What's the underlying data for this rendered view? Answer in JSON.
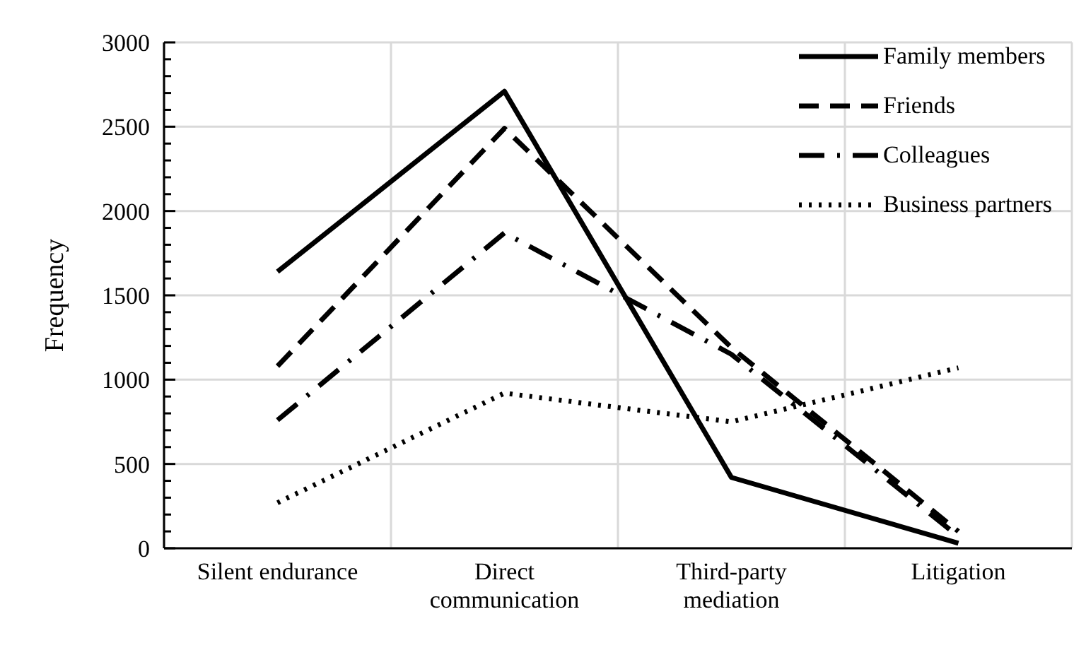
{
  "chart_data": {
    "type": "line",
    "ylabel": "Frequency",
    "categories": [
      "Silent endurance",
      "Direct communication",
      "Third-party mediation",
      "Litigation"
    ],
    "series": [
      {
        "name": "Family members",
        "color": "#000000",
        "line_style": "solid",
        "values": [
          1640,
          2710,
          420,
          30
        ]
      },
      {
        "name": "Friends",
        "color": "#000000",
        "line_style": "dashed",
        "values": [
          1080,
          2490,
          1190,
          100
        ]
      },
      {
        "name": "Colleagues",
        "color": "#000000",
        "line_style": "dashdot",
        "values": [
          760,
          1870,
          1150,
          70
        ]
      },
      {
        "name": "Business partners",
        "color": "#000000",
        "line_style": "dotted",
        "values": [
          270,
          920,
          750,
          1070
        ]
      }
    ],
    "ylim": [
      0,
      3000
    ],
    "yticks": [
      0,
      {
        "value": 100,
        "label": null
      },
      {
        "value": 200,
        "label": null
      },
      {
        "value": 300,
        "label": null
      },
      {
        "value": 400,
        "label": null
      },
      500,
      {
        "value": 600,
        "label": null
      },
      {
        "value": 700,
        "label": null
      },
      {
        "value": 800,
        "label": null
      },
      {
        "value": 900,
        "label": null
      },
      1000,
      {
        "value": 1100,
        "label": null
      },
      {
        "value": 1200,
        "label": null
      },
      {
        "value": 1300,
        "label": null
      },
      {
        "value": 1400,
        "label": null
      },
      1500,
      {
        "value": 1600,
        "label": null
      },
      {
        "value": 1700,
        "label": null
      },
      {
        "value": 1800,
        "label": null
      },
      {
        "value": 1900,
        "label": null
      },
      2000,
      {
        "value": 2100,
        "label": null
      },
      {
        "value": 2200,
        "label": null
      },
      {
        "value": 2300,
        "label": null
      },
      {
        "value": 2400,
        "label": null
      },
      2500,
      {
        "value": 2600,
        "label": null
      },
      {
        "value": 2700,
        "label": null
      },
      {
        "value": 2800,
        "label": null
      },
      {
        "value": 2900,
        "label": null
      },
      3000
    ],
    "grid": true,
    "legend": "top right",
    "marker": "none"
  }
}
